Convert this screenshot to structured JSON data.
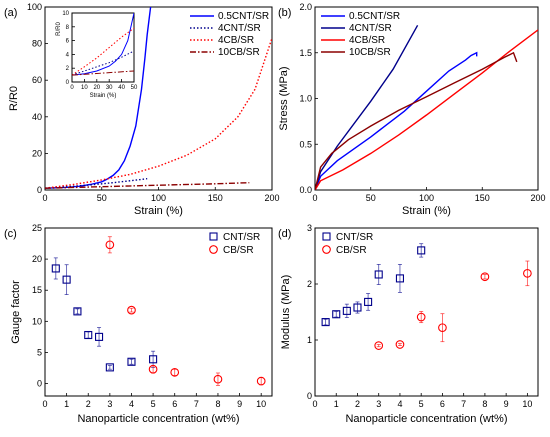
{
  "chart_data": [
    {
      "panel": "(a)",
      "type": "line",
      "xlabel": "Strain (%)",
      "ylabel": "R/R0",
      "xlim": [
        0,
        200
      ],
      "ylim": [
        0,
        100
      ],
      "xticks": [
        "0",
        "50",
        "100",
        "150",
        "200"
      ],
      "yticks": [
        "0",
        "20",
        "40",
        "60",
        "80",
        "100"
      ],
      "legend_placement": "top-right",
      "series": [
        {
          "name": "0.5CNT/SR",
          "color": "#0000ff",
          "dash": "solid",
          "x": [
            0,
            10,
            20,
            30,
            40,
            50,
            55,
            60,
            65,
            70,
            75,
            80,
            85,
            88,
            90,
            93
          ],
          "y": [
            1,
            1.2,
            1.5,
            2,
            3,
            4.5,
            6,
            8,
            11,
            16,
            24,
            35,
            55,
            72,
            85,
            100
          ]
        },
        {
          "name": "4CNT/SR",
          "color": "#00008b",
          "dash": "dot",
          "x": [
            0,
            20,
            40,
            60,
            80,
            90
          ],
          "y": [
            1,
            1.8,
            2.8,
            4,
            5.4,
            6.2
          ]
        },
        {
          "name": "4CB/SR",
          "color": "#ff0000",
          "dash": "dot",
          "x": [
            0,
            25,
            50,
            75,
            100,
            125,
            150,
            170,
            185,
            200
          ],
          "y": [
            1,
            3,
            5.5,
            8.5,
            13,
            19,
            28,
            40,
            55,
            83
          ]
        },
        {
          "name": "10CB/SR",
          "color": "#8b0000",
          "dash": "dashdot",
          "x": [
            0,
            50,
            100,
            150,
            180
          ],
          "y": [
            1,
            1.8,
            2.6,
            3.4,
            4
          ]
        }
      ],
      "inset": {
        "xlabel": "Strain (%)",
        "ylabel": "R/R0",
        "xlim": [
          0,
          50
        ],
        "ylim": [
          0,
          10
        ],
        "xticks": [
          "0",
          "10",
          "20",
          "30",
          "40",
          "50"
        ],
        "yticks": [
          "0",
          "2",
          "4",
          "6",
          "8",
          "10"
        ],
        "series": [
          {
            "name": "0.5CNT/SR",
            "x": [
              0,
              10,
              20,
              30,
              35,
              40,
              45,
              50
            ],
            "y": [
              1,
              1.2,
              1.6,
              2.3,
              3,
              4,
              6,
              10
            ]
          },
          {
            "name": "4CNT/SR",
            "x": [
              0,
              10,
              20,
              30,
              40,
              50
            ],
            "y": [
              1,
              1.6,
              2.2,
              2.8,
              3.6,
              4.5
            ]
          },
          {
            "name": "4CB/SR",
            "x": [
              0,
              10,
              20,
              30,
              40,
              50
            ],
            "y": [
              1,
              2.2,
              3.5,
              5,
              6.5,
              7.8
            ]
          },
          {
            "name": "10CB/SR",
            "x": [
              0,
              50
            ],
            "y": [
              1,
              1.6
            ]
          }
        ]
      }
    },
    {
      "panel": "(b)",
      "type": "line",
      "xlabel": "Strain (%)",
      "ylabel": "Stress (MPa)",
      "xlim": [
        0,
        200
      ],
      "ylim": [
        0,
        2.0
      ],
      "xticks": [
        "0",
        "50",
        "100",
        "150",
        "200"
      ],
      "yticks": [
        "0.0",
        "0.5",
        "1.0",
        "1.5",
        "2.0"
      ],
      "legend_placement": "top-left",
      "series": [
        {
          "name": "0.5CNT/SR",
          "color": "#0000ff",
          "dash": "solid",
          "x": [
            0,
            5,
            20,
            50,
            80,
            100,
            120,
            135,
            140,
            145,
            145
          ],
          "y": [
            0,
            0.15,
            0.32,
            0.58,
            0.86,
            1.08,
            1.3,
            1.42,
            1.47,
            1.5,
            1.46
          ]
        },
        {
          "name": "4CNT/SR",
          "color": "#00008b",
          "dash": "solid",
          "x": [
            0,
            5,
            20,
            50,
            70,
            92
          ],
          "y": [
            0,
            0.2,
            0.48,
            0.97,
            1.32,
            1.8
          ]
        },
        {
          "name": "4CB/SR",
          "color": "#ff0000",
          "dash": "solid",
          "x": [
            0,
            5,
            25,
            50,
            75,
            100,
            125,
            150,
            175,
            200
          ],
          "y": [
            0,
            0.1,
            0.22,
            0.4,
            0.6,
            0.82,
            1.05,
            1.28,
            1.52,
            1.75
          ]
        },
        {
          "name": "10CB/SR",
          "color": "#8b0000",
          "dash": "solid",
          "x": [
            0,
            5,
            15,
            30,
            50,
            75,
            100,
            125,
            150,
            170,
            178,
            181
          ],
          "y": [
            0,
            0.25,
            0.4,
            0.55,
            0.7,
            0.87,
            1.02,
            1.17,
            1.32,
            1.45,
            1.5,
            1.4
          ]
        }
      ]
    },
    {
      "panel": "(c)",
      "type": "scatter",
      "xlabel": "Nanoparticle concentration (wt%)",
      "ylabel": "Gauge factor",
      "xlim": [
        0,
        10.5
      ],
      "ylim": [
        -2,
        25
      ],
      "xticks": [
        "0",
        "1",
        "2",
        "3",
        "4",
        "5",
        "6",
        "7",
        "8",
        "9",
        "10"
      ],
      "yticks": [
        "0",
        "5",
        "10",
        "15",
        "20",
        "25"
      ],
      "legend_placement": "top-right",
      "series": [
        {
          "name": "CNT/SR",
          "marker": "square",
          "color": "#00008b",
          "x": [
            0.5,
            1,
            1.5,
            2,
            2.5,
            3,
            4,
            5
          ],
          "y": [
            18.5,
            16.7,
            11.6,
            7.8,
            7.5,
            2.6,
            3.5,
            3.9
          ],
          "err": [
            1.7,
            2.4,
            0.4,
            0.5,
            1.5,
            0.3,
            0.4,
            1.3
          ]
        },
        {
          "name": "CB/SR",
          "marker": "circle",
          "color": "#ff0000",
          "x": [
            3,
            4,
            5,
            6,
            8,
            10
          ],
          "y": [
            22.3,
            11.8,
            2.3,
            1.8,
            0.7,
            0.4
          ],
          "err": [
            1.3,
            0.3,
            0.6,
            0.5,
            1.0,
            0.6
          ]
        }
      ]
    },
    {
      "panel": "(d)",
      "type": "scatter",
      "xlabel": "Nanoparticle concentration (wt%)",
      "ylabel": "Modulus (MPa)",
      "xlim": [
        0,
        10.5
      ],
      "ylim": [
        0,
        3.0
      ],
      "xticks": [
        "0",
        "1",
        "2",
        "3",
        "4",
        "5",
        "6",
        "7",
        "8",
        "9",
        "10"
      ],
      "yticks": [
        "0",
        "1",
        "2",
        "3"
      ],
      "legend_placement": "top-left",
      "series": [
        {
          "name": "CNT/SR",
          "marker": "square",
          "color": "#00008b",
          "x": [
            0.5,
            1,
            1.5,
            2,
            2.5,
            3,
            4,
            5
          ],
          "y": [
            1.32,
            1.46,
            1.52,
            1.58,
            1.68,
            2.17,
            2.1,
            2.6
          ],
          "err": [
            0.05,
            0.05,
            0.12,
            0.1,
            0.15,
            0.18,
            0.25,
            0.12
          ]
        },
        {
          "name": "CB/SR",
          "marker": "circle",
          "color": "#ff0000",
          "x": [
            3,
            4,
            5,
            6,
            8,
            10
          ],
          "y": [
            0.9,
            0.92,
            1.41,
            1.22,
            2.13,
            2.19
          ],
          "err": [
            0.02,
            0.02,
            0.1,
            0.25,
            0.04,
            0.22
          ]
        }
      ]
    }
  ]
}
